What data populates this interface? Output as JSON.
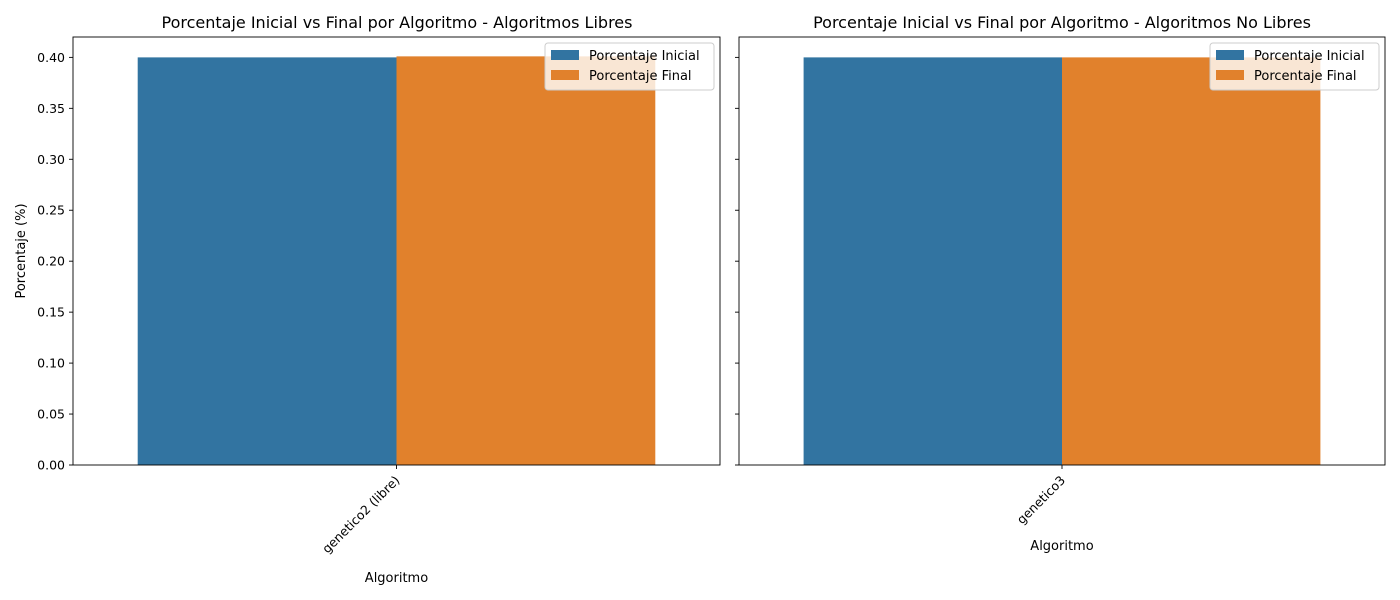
{
  "chart_data": [
    {
      "type": "bar",
      "title": "Porcentaje Inicial vs Final por Algoritmo - Algoritmos Libres",
      "xlabel": "Algoritmo",
      "ylabel": "Porcentaje (%)",
      "categories": [
        "genetico2 (libre)"
      ],
      "series": [
        {
          "name": "Porcentaje Inicial",
          "values": [
            0.4
          ],
          "color": "#3274a1"
        },
        {
          "name": "Porcentaje Final",
          "values": [
            0.401
          ],
          "color": "#e1812c"
        }
      ],
      "ylim": [
        0,
        0.42
      ],
      "yticks": [
        "0.00",
        "0.05",
        "0.10",
        "0.15",
        "0.20",
        "0.25",
        "0.30",
        "0.35",
        "0.40"
      ],
      "grid": false,
      "legend_position": "top-right"
    },
    {
      "type": "bar",
      "title": "Porcentaje Inicial vs Final por Algoritmo - Algoritmos No Libres",
      "xlabel": "Algoritmo",
      "ylabel": "",
      "categories": [
        "genetico3"
      ],
      "series": [
        {
          "name": "Porcentaje Inicial",
          "values": [
            0.4
          ],
          "color": "#3274a1"
        },
        {
          "name": "Porcentaje Final",
          "values": [
            0.4
          ],
          "color": "#e1812c"
        }
      ],
      "ylim": [
        0,
        0.42
      ],
      "yticks": [
        "0.00",
        "0.05",
        "0.10",
        "0.15",
        "0.20",
        "0.25",
        "0.30",
        "0.35",
        "0.40"
      ],
      "ytick_labels_visible": false,
      "grid": false,
      "legend_position": "top-right"
    }
  ]
}
